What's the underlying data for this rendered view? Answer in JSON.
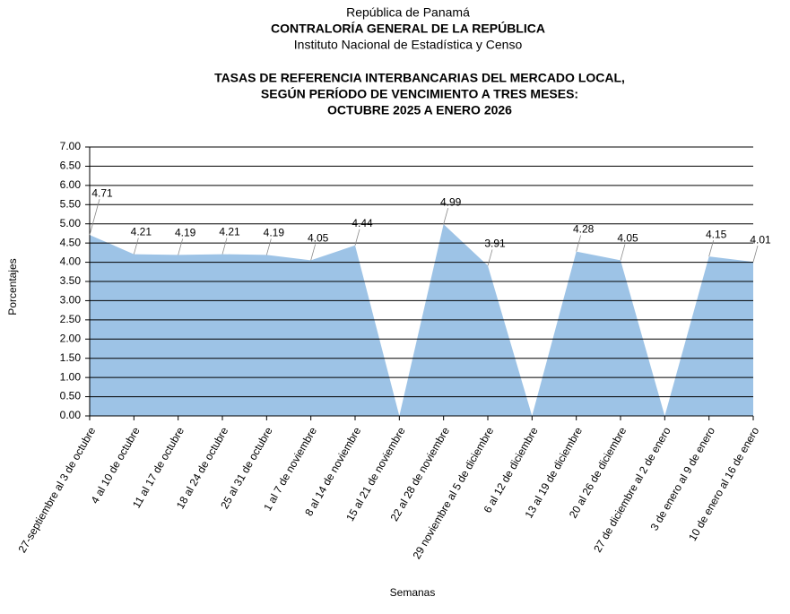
{
  "chart_data": {
    "type": "area",
    "header_lines": [
      "República de Panamá",
      "CONTRALORÍA GENERAL DE LA REPÚBLICA",
      "Instituto  Nacional de Estadística y Censo"
    ],
    "title_lines": [
      "TASAS DE REFERENCIA INTERBANCARIAS DEL MERCADO LOCAL,",
      "SEGÚN PERÍODO DE VENCIMIENTO A TRES MESES:",
      "OCTUBRE 2025 A ENERO 2026"
    ],
    "y_label": "Porcentajes",
    "x_label": "Semanas",
    "categories": [
      "27-septiembre al 3 de octubre",
      "4 al 10 de octubre",
      "11 al 17 de octubre",
      "18 al 24 de octubre",
      "25 al 31 de octubre",
      "1 al 7 de noviembre",
      "8 al 14 de noviembre",
      "15 al 21 de noviembre",
      "22 al 28 de noviembre",
      "29 noviembre al 5 de diciembre",
      "6 al 12 de diciembre",
      "13 al 19 de diciembre",
      "20 al 26 de diciembre",
      "27 de diciembre al 2 de enero",
      "3 de enero al 9 de enero",
      "10 de enero al 16 de enero"
    ],
    "values": [
      4.71,
      4.21,
      4.19,
      4.21,
      4.19,
      4.05,
      4.44,
      0,
      4.99,
      3.91,
      0,
      4.28,
      4.05,
      0,
      4.15,
      4.01
    ],
    "color": "#9dc3e6",
    "ylim": [
      0,
      7
    ],
    "yticks": [
      {
        "value": 0,
        "label": "0.00"
      },
      {
        "value": 0.5,
        "label": "0.50"
      },
      {
        "value": 1,
        "label": "1.00"
      },
      {
        "value": 1.5,
        "label": "1.50"
      },
      {
        "value": 2,
        "label": "2.00"
      },
      {
        "value": 2.5,
        "label": "2.50"
      },
      {
        "value": 3,
        "label": "3.00"
      },
      {
        "value": 3.5,
        "label": "3.50"
      },
      {
        "value": 4,
        "label": "4.00"
      },
      {
        "value": 4.5,
        "label": "4.50"
      },
      {
        "value": 5,
        "label": "5.00"
      },
      {
        "value": 5.5,
        "label": "5.50"
      },
      {
        "value": 6,
        "label": "6.00"
      },
      {
        "value": 6.5,
        "label": "6.50"
      },
      {
        "value": 7,
        "label": "7.00"
      }
    ],
    "grid": true
  }
}
